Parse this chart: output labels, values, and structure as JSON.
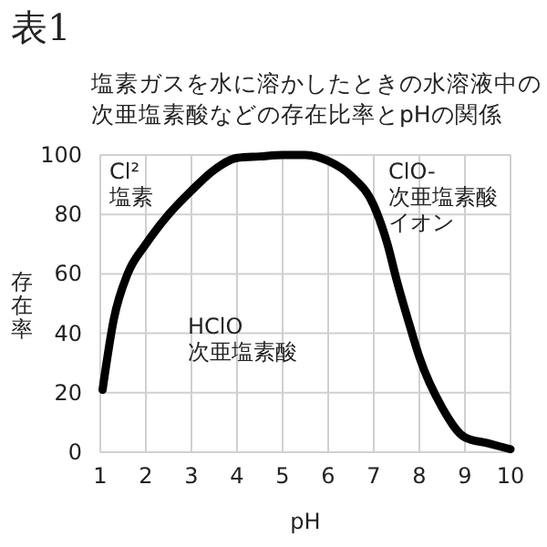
{
  "chart_data": {
    "type": "line",
    "title": "表1",
    "subtitle": "塩素ガスを水に溶かしたときの水溶液中の次亜塩素酸などの存在比率とpHの関係",
    "xlabel": "pH",
    "ylabel": "存在率",
    "x": [
      1.05,
      1.3,
      1.6,
      2,
      2.5,
      3,
      3.5,
      4,
      4.5,
      5,
      5.5,
      6,
      6.5,
      7,
      7.3,
      7.5,
      7.8,
      8,
      8.5,
      9,
      9.5,
      10
    ],
    "series": [
      {
        "color": "#000000",
        "values": [
          21,
          45,
          60,
          70,
          80,
          88,
          95,
          99,
          99.5,
          100,
          100,
          98,
          93,
          83,
          70,
          58,
          42,
          32,
          15,
          5,
          3,
          1
        ]
      }
    ],
    "xlim": [
      1,
      10
    ],
    "xticks": [
      1,
      2,
      3,
      4,
      5,
      6,
      7,
      8,
      9,
      10
    ],
    "ylim": [
      0,
      100
    ],
    "yticks": [
      0,
      20,
      40,
      60,
      80,
      100
    ],
    "grid": true,
    "marker": "none",
    "line_style": "solid",
    "annotations": [
      "Cl²\n塩素",
      "HClO\n次亜塩素酸",
      "ClO-\n次亜塩素酸イオン"
    ]
  }
}
